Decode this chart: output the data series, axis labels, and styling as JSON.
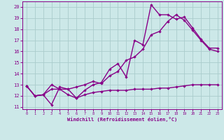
{
  "line1_x": [
    0,
    1,
    2,
    3,
    4,
    5,
    6,
    7,
    8,
    9,
    10,
    11,
    12,
    13,
    14,
    15,
    16,
    17,
    18,
    19,
    20,
    21,
    22,
    23
  ],
  "line1_y": [
    12.9,
    12.0,
    12.1,
    12.6,
    12.6,
    12.1,
    11.8,
    12.1,
    12.3,
    12.4,
    12.5,
    12.5,
    12.5,
    12.6,
    12.6,
    12.6,
    12.7,
    12.7,
    12.8,
    12.9,
    13.0,
    13.0,
    13.0,
    13.0
  ],
  "line2_x": [
    0,
    1,
    2,
    3,
    4,
    5,
    6,
    7,
    8,
    9,
    10,
    11,
    12,
    13,
    14,
    15,
    16,
    17,
    18,
    19,
    20,
    21,
    22,
    23
  ],
  "line2_y": [
    12.9,
    12.0,
    12.1,
    13.0,
    12.6,
    12.6,
    12.8,
    13.0,
    13.3,
    13.1,
    13.8,
    14.2,
    15.2,
    15.5,
    16.2,
    17.5,
    17.8,
    18.7,
    19.3,
    18.8,
    17.9,
    17.0,
    16.2,
    16.0
  ],
  "line3_x": [
    0,
    1,
    2,
    3,
    4,
    5,
    6,
    7,
    8,
    9,
    10,
    11,
    12,
    13,
    14,
    15,
    16,
    17,
    18,
    19,
    20,
    21,
    22,
    23
  ],
  "line3_y": [
    12.9,
    12.0,
    12.1,
    11.2,
    12.8,
    12.6,
    11.8,
    12.5,
    13.0,
    13.2,
    14.4,
    14.9,
    13.7,
    17.0,
    16.6,
    20.2,
    19.3,
    19.3,
    18.9,
    19.1,
    18.1,
    17.1,
    16.3,
    16.3
  ],
  "color": "#880088",
  "bg_color": "#cce8e8",
  "grid_color": "#aacccc",
  "xlabel": "Windchill (Refroidissement éolien,°C)",
  "xlim": [
    -0.5,
    23.5
  ],
  "ylim": [
    10.8,
    20.5
  ],
  "yticks": [
    11,
    12,
    13,
    14,
    15,
    16,
    17,
    18,
    19,
    20
  ],
  "xticks": [
    0,
    1,
    2,
    3,
    4,
    5,
    6,
    7,
    8,
    9,
    10,
    11,
    12,
    13,
    14,
    15,
    16,
    17,
    18,
    19,
    20,
    21,
    22,
    23
  ],
  "marker": "D",
  "markersize": 2.2,
  "linewidth": 1.0
}
